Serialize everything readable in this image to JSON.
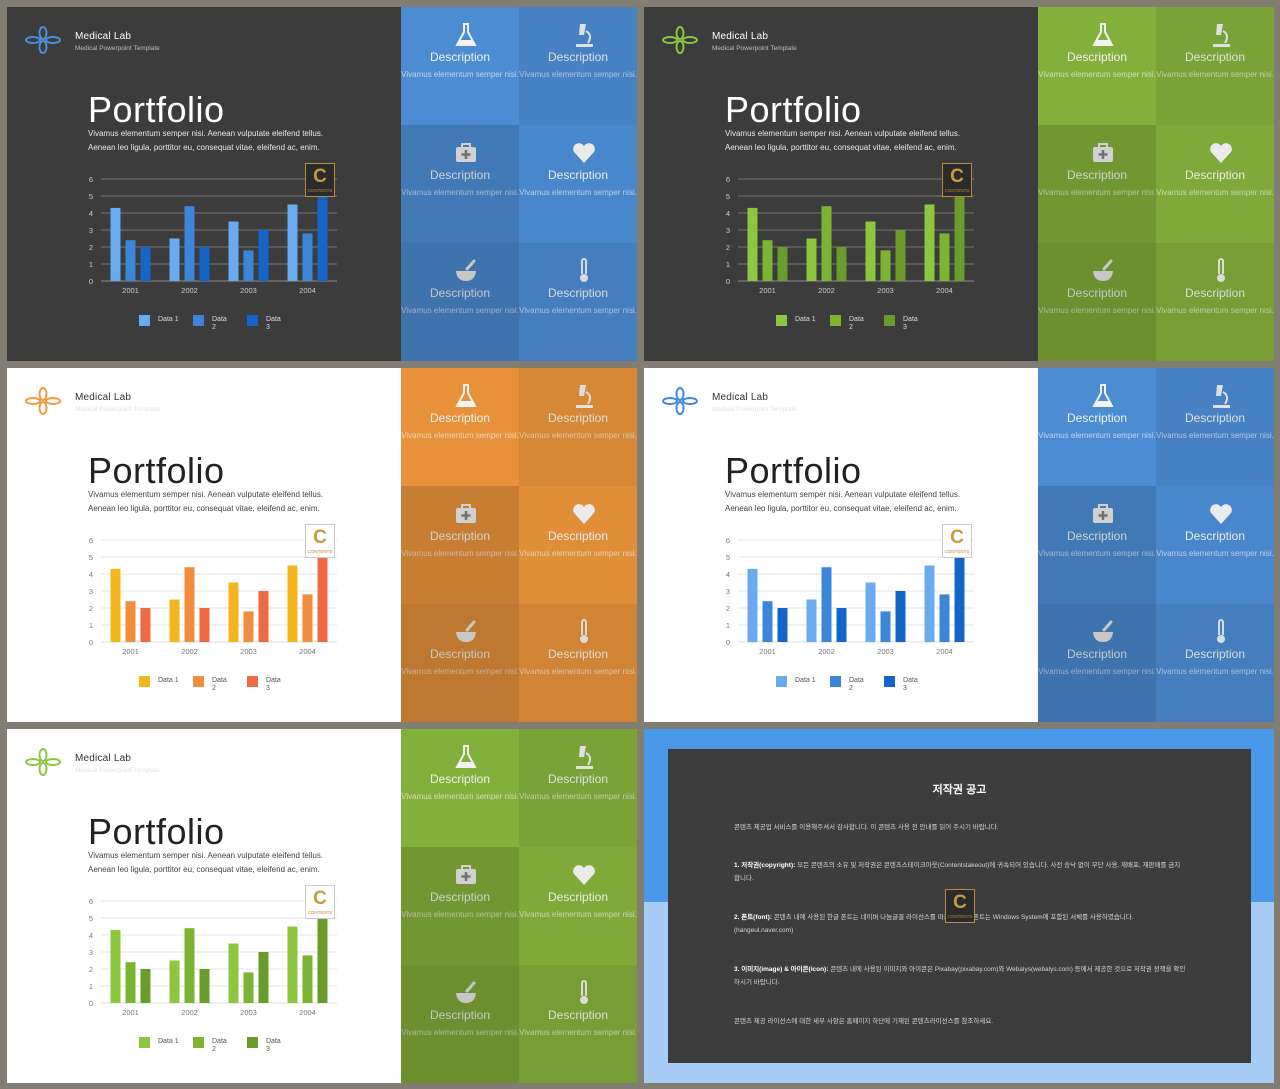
{
  "brand": {
    "name": "Medical Lab",
    "subtitle": "Medical Powerpoint Template"
  },
  "portfolio": {
    "title": "Portfolio",
    "description": "Vivamus elementum semper nisi. Aenean vulputate eleifend tellus. Aenean leo ligula, porttitor eu, consequat vitae, eleifend ac, enim."
  },
  "badge": {
    "letter": "C",
    "text": "CONTENTS"
  },
  "tile_icons": [
    "flask-icon",
    "microscope-icon",
    "medical-kit-icon",
    "heart-icon",
    "mortar-pestle-icon",
    "thermometer-icon"
  ],
  "tiles": [
    {
      "heading": "Description",
      "text": "Vivamus elementum semper nisi."
    },
    {
      "heading": "Description",
      "text": "Vivamus elementum semper nisi."
    },
    {
      "heading": "Description",
      "text": "Vivamus elementum semper nisi."
    },
    {
      "heading": "Description",
      "text": "Vivamus elementum semper nisi."
    },
    {
      "heading": "Description",
      "text": "Vivamus elementum semper nisi."
    },
    {
      "heading": "Description",
      "text": "Vivamus elementum semper nisi."
    }
  ],
  "themes": [
    {
      "mode": "dark",
      "logo": "#4a90d9",
      "tiles": "#4f93de",
      "series_colors": [
        "#6aaaf0",
        "#3b86d8",
        "#1365c8"
      ]
    },
    {
      "mode": "dark",
      "logo": "#8dc63f",
      "tiles": "#8ab83e",
      "series_colors": [
        "#8dc63f",
        "#7cb432",
        "#699c2a"
      ]
    },
    {
      "mode": "light",
      "logo": "#f29a3e",
      "tiles": "#f39a3d",
      "series_colors": [
        "#f5b51c",
        "#f18d3d",
        "#ee6a43"
      ]
    },
    {
      "mode": "light",
      "logo": "#3f8ad6",
      "tiles": "#4f93de",
      "series_colors": [
        "#6aaaf0",
        "#3b86d8",
        "#1365c8"
      ]
    },
    {
      "mode": "light",
      "logo": "#8dc63f",
      "tiles": "#8ab83e",
      "series_colors": [
        "#8dc63f",
        "#7cb432",
        "#699c2a"
      ]
    }
  ],
  "chart_data": {
    "type": "bar",
    "categories": [
      "2001",
      "2002",
      "2003",
      "2004"
    ],
    "series": [
      {
        "name": "Data 1",
        "values": [
          4.3,
          2.5,
          3.5,
          4.5
        ]
      },
      {
        "name": "Data 2",
        "values": [
          2.4,
          4.4,
          1.8,
          2.8
        ]
      },
      {
        "name": "Data 3",
        "values": [
          2.0,
          2.0,
          3.0,
          5.0
        ]
      }
    ],
    "ylim": [
      0,
      6
    ],
    "yticks": [
      0,
      1,
      2,
      3,
      4,
      5,
      6
    ],
    "grid": true,
    "legend": "bottom",
    "legend_labels": [
      {
        "line1": "Data 1",
        "line2": ""
      },
      {
        "line1": "Data",
        "line2": "2"
      },
      {
        "line1": "Data",
        "line2": "3"
      }
    ]
  },
  "copyright": {
    "title": "저작권 공고",
    "intro": "콘텐츠 제공업 서비스를 이용해주셔서 감사합니다. 이 콘텐츠 사용 전 안내를 읽어 주시기 바랍니다.",
    "sections": [
      {
        "label": "1. 저작권(copyright):",
        "text": "모든 콘텐츠의 소유 및 저작권은 콘텐츠스테이크아웃(Contentstakeout)에 귀속되어 있습니다. 사전 승낙 없이 무단 사용, 재배포, 재판매를 금지합니다."
      },
      {
        "label": "2. 폰트(font):",
        "text": "콘텐츠 내에 사용된 한글 폰트는 네이버 나눔글꼴 라이선스를 따르며, 영문 폰트는 Windows System에 포함된 서체를 사용하였습니다. (hangeul.naver.com)"
      },
      {
        "label": "3. 이미지(image) & 아이콘(icon):",
        "text": "콘텐츠 내에 사용된 이미지와 아이콘은 Pixabay(pixabay.com)와 Webalys(webalys.com) 등에서 제공한 것으로 저작권 정책을 확인하시기 바랍니다."
      }
    ],
    "footer": "콘텐츠 제공 라이선스에 대한 세부 사항은 홈페이지 하단에 기재된 콘텐츠라이선스를 참조하세요."
  }
}
